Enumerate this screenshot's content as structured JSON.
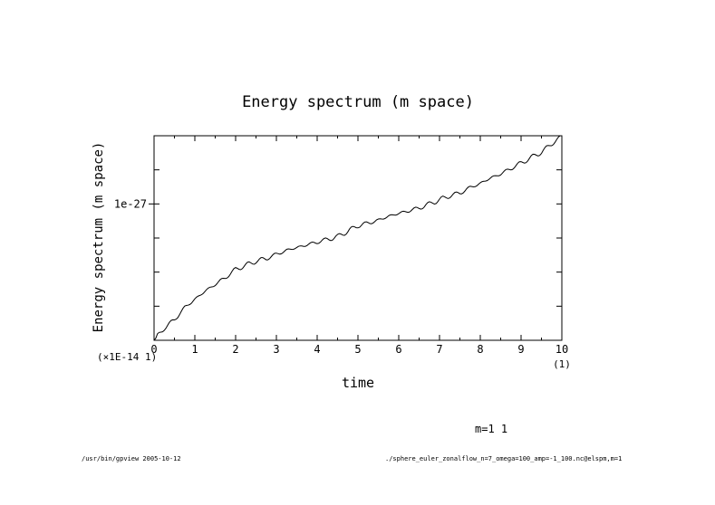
{
  "chart_data": {
    "type": "line",
    "title": "Energy spectrum (m space)",
    "xlabel": "time",
    "ylabel": "Energy spectrum (m space)",
    "x_tick_labels": [
      "0",
      "1",
      "2",
      "3",
      "4",
      "5",
      "6",
      "7",
      "8",
      "9",
      "10"
    ],
    "x_scale_note": "(1)",
    "y_tick_labels": [
      "1e-27"
    ],
    "y_scale_note": "(×1E-14 1)",
    "xlim": [
      0,
      10
    ],
    "ylim": [
      0,
      1.5
    ],
    "y_label_value": 1.0,
    "grid": false,
    "series": [
      {
        "x": [
          0,
          0.25,
          0.5,
          0.75,
          1,
          1.25,
          1.5,
          1.75,
          2,
          2.25,
          2.5,
          2.75,
          3,
          3.25,
          3.5,
          3.75,
          4,
          4.25,
          4.5,
          4.75,
          5,
          5.25,
          5.5,
          5.75,
          6,
          6.25,
          6.5,
          6.75,
          7,
          7.25,
          7.5,
          7.75,
          8,
          8.25,
          8.5,
          8.75,
          9,
          9.25,
          9.5,
          9.75,
          10
        ],
        "y": [
          0,
          0.09,
          0.15,
          0.24,
          0.3,
          0.36,
          0.41,
          0.46,
          0.52,
          0.55,
          0.58,
          0.6,
          0.63,
          0.66,
          0.68,
          0.7,
          0.72,
          0.74,
          0.76,
          0.8,
          0.84,
          0.86,
          0.88,
          0.91,
          0.93,
          0.95,
          0.97,
          1.0,
          1.03,
          1.06,
          1.08,
          1.12,
          1.15,
          1.19,
          1.22,
          1.26,
          1.3,
          1.34,
          1.38,
          1.44,
          1.5
        ]
      }
    ]
  },
  "subplot_label": "m=1 1",
  "footer": {
    "left": "/usr/bin/gpview  2005-10-12",
    "right": "./sphere_euler_zonalflow_n=7_omega=100_amp=-1_100.nc@elspm,m=1"
  }
}
